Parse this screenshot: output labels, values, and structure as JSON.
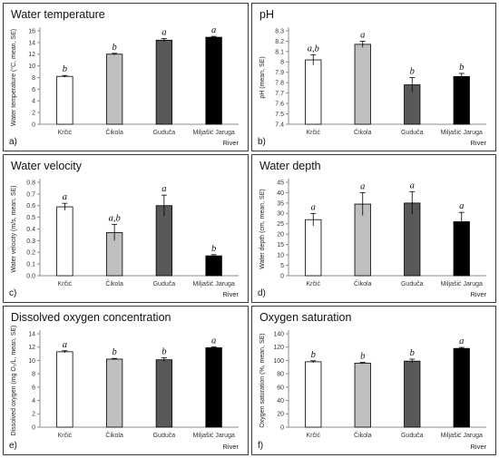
{
  "chart_data": [
    {
      "panel": "a)",
      "type": "bar",
      "title": "Water temperature",
      "ylabel": "Water temperature (°C, mean, SE)",
      "xlabel": "River",
      "categories": [
        "Krčić",
        "Čikola",
        "Guduča",
        "Miljašić Jaruga"
      ],
      "values": [
        8.2,
        12.0,
        14.4,
        14.9
      ],
      "errors": [
        0.15,
        0.15,
        0.3,
        0.15
      ],
      "letters": [
        "b",
        "b",
        "a",
        "a"
      ],
      "ylim": [
        0,
        16
      ],
      "yticks": [
        "0",
        "2",
        "4",
        "6",
        "8",
        "10",
        "12",
        "14",
        "16"
      ],
      "colors": [
        "#ffffff",
        "#bfbfbf",
        "#595959",
        "#000000"
      ]
    },
    {
      "panel": "b)",
      "type": "bar",
      "title": "pH",
      "ylabel": "pH (mean, SE)",
      "xlabel": "River",
      "categories": [
        "Krčić",
        "Čikola",
        "Guduča",
        "Miljašić Jaruga"
      ],
      "values": [
        8.02,
        8.17,
        7.78,
        7.86
      ],
      "errors": [
        0.05,
        0.03,
        0.07,
        0.03
      ],
      "letters": [
        "a,b",
        "a",
        "b",
        "b"
      ],
      "ylim": [
        7.4,
        8.3
      ],
      "yticks": [
        "7.4",
        "7.5",
        "7.6",
        "7.7",
        "7.8",
        "7.9",
        "8",
        "8.1",
        "8.2",
        "8.3"
      ],
      "colors": [
        "#ffffff",
        "#bfbfbf",
        "#595959",
        "#000000"
      ]
    },
    {
      "panel": "c)",
      "type": "bar",
      "title": "Water velocity",
      "ylabel": "Water velocity (m/s, mean, SE)",
      "xlabel": "River",
      "categories": [
        "Krčić",
        "Čikola",
        "Guduča",
        "Miljašić Jaruga"
      ],
      "values": [
        0.59,
        0.37,
        0.6,
        0.17
      ],
      "errors": [
        0.03,
        0.07,
        0.09,
        0.01
      ],
      "letters": [
        "a",
        "a,b",
        "a",
        "b"
      ],
      "ylim": [
        0,
        0.8
      ],
      "yticks": [
        "0.0",
        "0.1",
        "0.2",
        "0.3",
        "0.4",
        "0.5",
        "0.6",
        "0.7",
        "0.8"
      ],
      "colors": [
        "#ffffff",
        "#bfbfbf",
        "#595959",
        "#000000"
      ]
    },
    {
      "panel": "d)",
      "type": "bar",
      "title": "Water depth",
      "ylabel": "Water depth (cm, mean, SE)",
      "xlabel": "River",
      "categories": [
        "Krčić",
        "Čikola",
        "Guduča",
        "Miljašić Jaruga"
      ],
      "values": [
        27,
        34.5,
        35,
        26
      ],
      "errors": [
        3,
        5.5,
        5.5,
        4.5
      ],
      "letters": [
        "a",
        "a",
        "a",
        "a"
      ],
      "ylim": [
        0,
        45
      ],
      "yticks": [
        "0",
        "5",
        "10",
        "15",
        "20",
        "25",
        "30",
        "35",
        "40",
        "45"
      ],
      "colors": [
        "#ffffff",
        "#bfbfbf",
        "#595959",
        "#000000"
      ]
    },
    {
      "panel": "e)",
      "type": "bar",
      "title": "Dissolved oxygen concentration",
      "ylabel": "Dissolved oxygen (mg O₂/L, mean, SE)",
      "xlabel": "River",
      "categories": [
        "Krčić",
        "Čikola",
        "Guduča",
        "Miljašić Jaruga"
      ],
      "values": [
        11.3,
        10.2,
        10.1,
        11.9
      ],
      "errors": [
        0.15,
        0.1,
        0.3,
        0.15
      ],
      "letters": [
        "a",
        "b",
        "b",
        "a"
      ],
      "ylim": [
        0,
        14
      ],
      "yticks": [
        "0",
        "2",
        "4",
        "6",
        "8",
        "10",
        "12",
        "14"
      ],
      "colors": [
        "#ffffff",
        "#bfbfbf",
        "#595959",
        "#000000"
      ]
    },
    {
      "panel": "f)",
      "type": "bar",
      "title": "Oxygen saturation",
      "ylabel": "Oxygen saturation (%, mean, SE)",
      "xlabel": "River",
      "categories": [
        "Krčić",
        "Čikola",
        "Guduča",
        "Miljašić Jaruga"
      ],
      "values": [
        98,
        96,
        99,
        118
      ],
      "errors": [
        1.5,
        1,
        3,
        1.5
      ],
      "letters": [
        "b",
        "b",
        "b",
        "a"
      ],
      "ylim": [
        0,
        140
      ],
      "yticks": [
        "0",
        "20",
        "40",
        "60",
        "80",
        "100",
        "120",
        "140"
      ],
      "colors": [
        "#ffffff",
        "#bfbfbf",
        "#595959",
        "#000000"
      ]
    }
  ]
}
